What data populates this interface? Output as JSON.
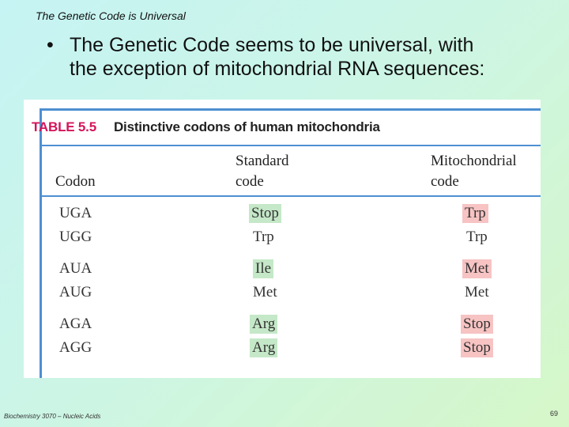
{
  "slide": {
    "title": "The Genetic Code is Universal",
    "bullet_symbol": "•",
    "bullet_line1": "The Genetic Code seems to be universal, with",
    "bullet_line2": "the exception of mitochondrial RNA sequences:"
  },
  "table": {
    "number": "TABLE 5.5",
    "caption": "Distinctive codons of human mitochondria",
    "headers": {
      "codon": "Codon",
      "standard_line1": "Standard",
      "standard_line2": "code",
      "mito_line1": "Mitochondrial",
      "mito_line2": "code"
    },
    "rows": [
      {
        "codon": "UGA",
        "standard": "Stop",
        "mito": "Trp"
      },
      {
        "codon": "UGG",
        "standard": "Trp",
        "mito": "Trp"
      },
      {
        "codon": "AUA",
        "standard": "Ile",
        "mito": "Met"
      },
      {
        "codon": "AUG",
        "standard": "Met",
        "mito": "Met"
      },
      {
        "codon": "AGA",
        "standard": "Arg",
        "mito": "Stop"
      },
      {
        "codon": "AGG",
        "standard": "Arg",
        "mito": "Stop"
      }
    ],
    "highlight_colors": {
      "standard": "#c5e8c8",
      "mitochondrial": "#f7c3c3"
    }
  },
  "footer": {
    "course": "Biochemistry 3070 – Nucleic Acids",
    "page": "69"
  }
}
